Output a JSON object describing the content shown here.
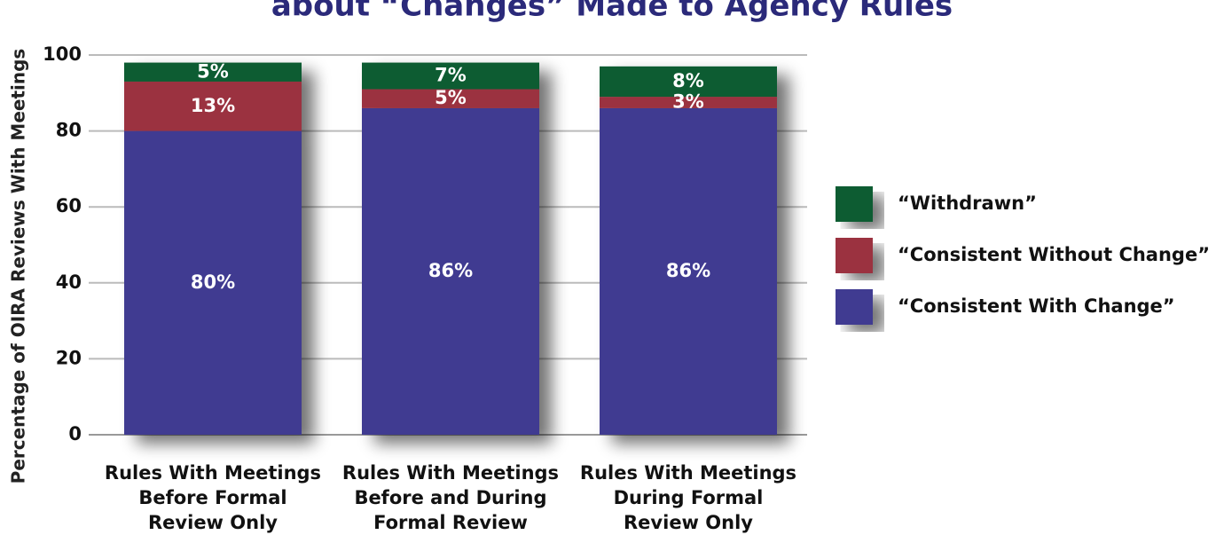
{
  "chart_data": {
    "type": "stacked_bar",
    "title": "about “Changes” Made to Agency Rules",
    "y_label": "Percentage of OIRA Reviews With Meetings",
    "categories": [
      [
        "Rules With Meetings",
        "Before Formal",
        "Review Only"
      ],
      [
        "Rules With Meetings",
        "Before and During",
        "Formal Review"
      ],
      [
        "Rules With Meetings",
        "During Formal",
        "Review Only"
      ]
    ],
    "series": [
      {
        "name": "“Consistent With Change”",
        "color": "#3f3a91",
        "values": [
          80,
          86,
          86
        ],
        "value_labels": [
          "80%",
          "86%",
          "86%"
        ]
      },
      {
        "name": "“Consistent Without Change”",
        "color": "#9b3340",
        "values": [
          13,
          5,
          3
        ],
        "value_labels": [
          "13%",
          "5%",
          "3%"
        ]
      },
      {
        "name": "“Withdrawn”",
        "color": "#0a5c32",
        "values": [
          5,
          7,
          8
        ],
        "value_labels": [
          "5%",
          "7%",
          "8%"
        ]
      }
    ],
    "ylim": [
      0,
      100
    ],
    "yticks": [
      0,
      20,
      40,
      60,
      80,
      100
    ],
    "grid": true,
    "legend": "right"
  }
}
